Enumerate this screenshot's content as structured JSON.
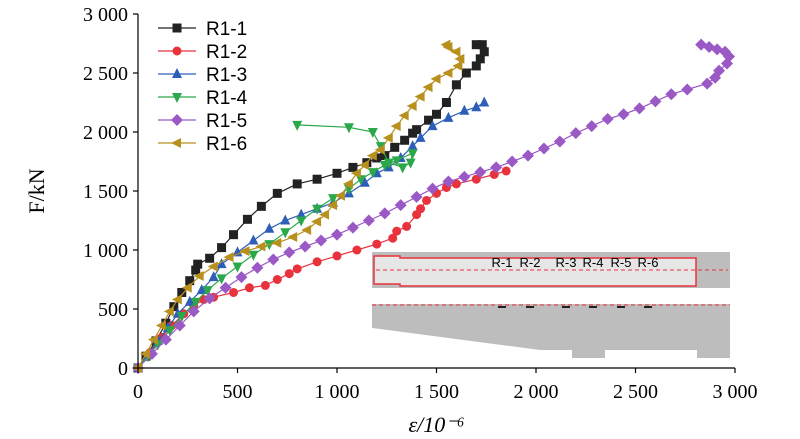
{
  "chart_data": {
    "type": "line",
    "xlabel": "ε/10⁻⁶",
    "ylabel": "F/kN",
    "xlim": [
      0,
      3000
    ],
    "ylim": [
      0,
      3000
    ],
    "x_ticks": [
      0,
      500,
      1000,
      1500,
      2000,
      2500,
      3000
    ],
    "x_tick_labels": [
      "0",
      "500",
      "1 000",
      "1 500",
      "2 000",
      "2 500",
      "3 000"
    ],
    "y_ticks": [
      0,
      500,
      1000,
      1500,
      2000,
      2500,
      3000
    ],
    "y_tick_labels": [
      "0",
      "500",
      "1 000",
      "1 500",
      "2 000",
      "2 500",
      "3 000"
    ],
    "grid": false,
    "legend_position": "top-left",
    "series": [
      {
        "name": "R1-1",
        "color": "#222222",
        "marker": "square",
        "points": [
          [
            0,
            0
          ],
          [
            40,
            100
          ],
          [
            90,
            230
          ],
          [
            140,
            380
          ],
          [
            180,
            520
          ],
          [
            220,
            640
          ],
          [
            260,
            740
          ],
          [
            290,
            830
          ],
          [
            300,
            880
          ],
          [
            360,
            930
          ],
          [
            420,
            1020
          ],
          [
            480,
            1130
          ],
          [
            550,
            1260
          ],
          [
            620,
            1370
          ],
          [
            700,
            1480
          ],
          [
            800,
            1560
          ],
          [
            900,
            1600
          ],
          [
            1000,
            1650
          ],
          [
            1080,
            1700
          ],
          [
            1150,
            1740
          ],
          [
            1200,
            1780
          ],
          [
            1240,
            1800
          ],
          [
            1290,
            1870
          ],
          [
            1340,
            1930
          ],
          [
            1380,
            1990
          ],
          [
            1400,
            2020
          ],
          [
            1460,
            2100
          ],
          [
            1500,
            2150
          ],
          [
            1550,
            2250
          ],
          [
            1600,
            2400
          ],
          [
            1650,
            2500
          ],
          [
            1700,
            2560
          ],
          [
            1720,
            2620
          ],
          [
            1740,
            2680
          ],
          [
            1730,
            2740
          ],
          [
            1700,
            2740
          ]
        ]
      },
      {
        "name": "R1-2",
        "color": "#e8323c",
        "marker": "circle",
        "points": [
          [
            0,
            0
          ],
          [
            60,
            130
          ],
          [
            120,
            260
          ],
          [
            170,
            360
          ],
          [
            230,
            460
          ],
          [
            280,
            530
          ],
          [
            330,
            580
          ],
          [
            380,
            600
          ],
          [
            480,
            640
          ],
          [
            560,
            680
          ],
          [
            640,
            700
          ],
          [
            700,
            750
          ],
          [
            760,
            800
          ],
          [
            800,
            840
          ],
          [
            900,
            900
          ],
          [
            1000,
            950
          ],
          [
            1100,
            1000
          ],
          [
            1200,
            1050
          ],
          [
            1280,
            1100
          ],
          [
            1300,
            1160
          ],
          [
            1350,
            1200
          ],
          [
            1400,
            1300
          ],
          [
            1420,
            1350
          ],
          [
            1450,
            1420
          ],
          [
            1500,
            1480
          ],
          [
            1550,
            1530
          ],
          [
            1600,
            1560
          ],
          [
            1700,
            1600
          ],
          [
            1790,
            1640
          ],
          [
            1850,
            1670
          ]
        ]
      },
      {
        "name": "R1-3",
        "color": "#2e5fb8",
        "marker": "triangle-up",
        "points": [
          [
            0,
            0
          ],
          [
            50,
            110
          ],
          [
            100,
            230
          ],
          [
            150,
            340
          ],
          [
            200,
            460
          ],
          [
            260,
            560
          ],
          [
            320,
            660
          ],
          [
            380,
            770
          ],
          [
            420,
            880
          ],
          [
            500,
            980
          ],
          [
            580,
            1080
          ],
          [
            660,
            1180
          ],
          [
            740,
            1250
          ],
          [
            820,
            1300
          ],
          [
            900,
            1350
          ],
          [
            980,
            1400
          ],
          [
            1060,
            1480
          ],
          [
            1140,
            1570
          ],
          [
            1200,
            1650
          ],
          [
            1260,
            1700
          ],
          [
            1320,
            1780
          ],
          [
            1380,
            1880
          ],
          [
            1420,
            1950
          ],
          [
            1480,
            2050
          ],
          [
            1560,
            2120
          ],
          [
            1640,
            2180
          ],
          [
            1700,
            2210
          ],
          [
            1740,
            2250
          ]
        ]
      },
      {
        "name": "R1-4",
        "color": "#2aa84a",
        "marker": "triangle-down",
        "points": [
          [
            0,
            0
          ],
          [
            50,
            100
          ],
          [
            100,
            200
          ],
          [
            160,
            320
          ],
          [
            220,
            440
          ],
          [
            290,
            560
          ],
          [
            350,
            660
          ],
          [
            420,
            760
          ],
          [
            500,
            860
          ],
          [
            580,
            960
          ],
          [
            660,
            1050
          ],
          [
            740,
            1150
          ],
          [
            820,
            1250
          ],
          [
            900,
            1350
          ],
          [
            980,
            1440
          ],
          [
            1060,
            1520
          ],
          [
            1120,
            1600
          ],
          [
            1180,
            1660
          ],
          [
            1240,
            1720
          ],
          [
            1300,
            1760
          ],
          [
            1380,
            1820
          ],
          [
            1370,
            1740
          ],
          [
            1330,
            1700
          ],
          [
            1260,
            1740
          ],
          [
            1220,
            1880
          ],
          [
            1180,
            2000
          ],
          [
            1060,
            2040
          ],
          [
            800,
            2060
          ]
        ]
      },
      {
        "name": "R1-5",
        "color": "#9b59c6",
        "marker": "diamond",
        "points": [
          [
            0,
            0
          ],
          [
            70,
            120
          ],
          [
            140,
            240
          ],
          [
            210,
            360
          ],
          [
            280,
            480
          ],
          [
            360,
            590
          ],
          [
            440,
            680
          ],
          [
            520,
            770
          ],
          [
            600,
            850
          ],
          [
            680,
            920
          ],
          [
            760,
            980
          ],
          [
            840,
            1030
          ],
          [
            920,
            1080
          ],
          [
            1000,
            1130
          ],
          [
            1080,
            1190
          ],
          [
            1160,
            1250
          ],
          [
            1240,
            1310
          ],
          [
            1320,
            1380
          ],
          [
            1400,
            1450
          ],
          [
            1480,
            1520
          ],
          [
            1560,
            1580
          ],
          [
            1640,
            1620
          ],
          [
            1720,
            1660
          ],
          [
            1800,
            1700
          ],
          [
            1880,
            1750
          ],
          [
            1960,
            1800
          ],
          [
            2040,
            1860
          ],
          [
            2120,
            1920
          ],
          [
            2200,
            1990
          ],
          [
            2280,
            2050
          ],
          [
            2360,
            2110
          ],
          [
            2440,
            2150
          ],
          [
            2520,
            2200
          ],
          [
            2600,
            2260
          ],
          [
            2680,
            2320
          ],
          [
            2760,
            2360
          ],
          [
            2860,
            2410
          ],
          [
            2900,
            2460
          ],
          [
            2920,
            2520
          ],
          [
            2960,
            2580
          ],
          [
            2970,
            2640
          ],
          [
            2950,
            2680
          ],
          [
            2910,
            2700
          ],
          [
            2870,
            2720
          ],
          [
            2830,
            2740
          ]
        ]
      },
      {
        "name": "R1-6",
        "color": "#b8901e",
        "marker": "triangle-left",
        "points": [
          [
            0,
            0
          ],
          [
            40,
            120
          ],
          [
            80,
            240
          ],
          [
            120,
            360
          ],
          [
            160,
            480
          ],
          [
            200,
            580
          ],
          [
            250,
            680
          ],
          [
            310,
            780
          ],
          [
            380,
            860
          ],
          [
            460,
            940
          ],
          [
            540,
            990
          ],
          [
            620,
            1030
          ],
          [
            700,
            1060
          ],
          [
            780,
            1110
          ],
          [
            850,
            1170
          ],
          [
            900,
            1240
          ],
          [
            940,
            1300
          ],
          [
            980,
            1380
          ],
          [
            1020,
            1460
          ],
          [
            1060,
            1560
          ],
          [
            1100,
            1650
          ],
          [
            1140,
            1720
          ],
          [
            1180,
            1800
          ],
          [
            1220,
            1850
          ],
          [
            1260,
            1950
          ],
          [
            1300,
            2050
          ],
          [
            1340,
            2140
          ],
          [
            1380,
            2220
          ],
          [
            1420,
            2300
          ],
          [
            1460,
            2380
          ],
          [
            1500,
            2450
          ],
          [
            1560,
            2500
          ],
          [
            1610,
            2560
          ],
          [
            1620,
            2620
          ],
          [
            1600,
            2680
          ],
          [
            1560,
            2720
          ],
          [
            1550,
            2740
          ]
        ]
      }
    ]
  },
  "inset": {
    "labels": [
      "R-1",
      "R-2",
      "R-3",
      "R-4",
      "R-5",
      "R-6"
    ]
  }
}
